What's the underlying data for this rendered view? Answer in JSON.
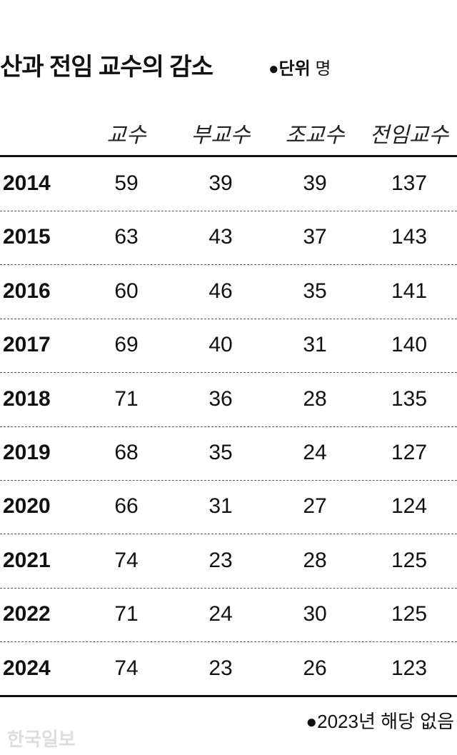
{
  "header": {
    "title": "산과 전임 교수의 감소",
    "unit_label": "●단위",
    "unit": "명"
  },
  "table": {
    "columns": [
      "교수",
      "부교수",
      "조교수",
      "전임교수"
    ],
    "rows": [
      [
        2014,
        59,
        39,
        39,
        137
      ],
      [
        2015,
        63,
        43,
        37,
        143
      ],
      [
        2016,
        60,
        46,
        35,
        141
      ],
      [
        2017,
        69,
        40,
        31,
        140
      ],
      [
        2018,
        71,
        36,
        28,
        135
      ],
      [
        2019,
        68,
        35,
        24,
        127
      ],
      [
        2020,
        66,
        31,
        27,
        124
      ],
      [
        2021,
        74,
        23,
        28,
        125
      ],
      [
        2022,
        71,
        24,
        30,
        125
      ],
      [
        2024,
        74,
        23,
        26,
        123
      ]
    ]
  },
  "footnote": "●2023년 해당 없음",
  "watermark": "한국일보"
}
